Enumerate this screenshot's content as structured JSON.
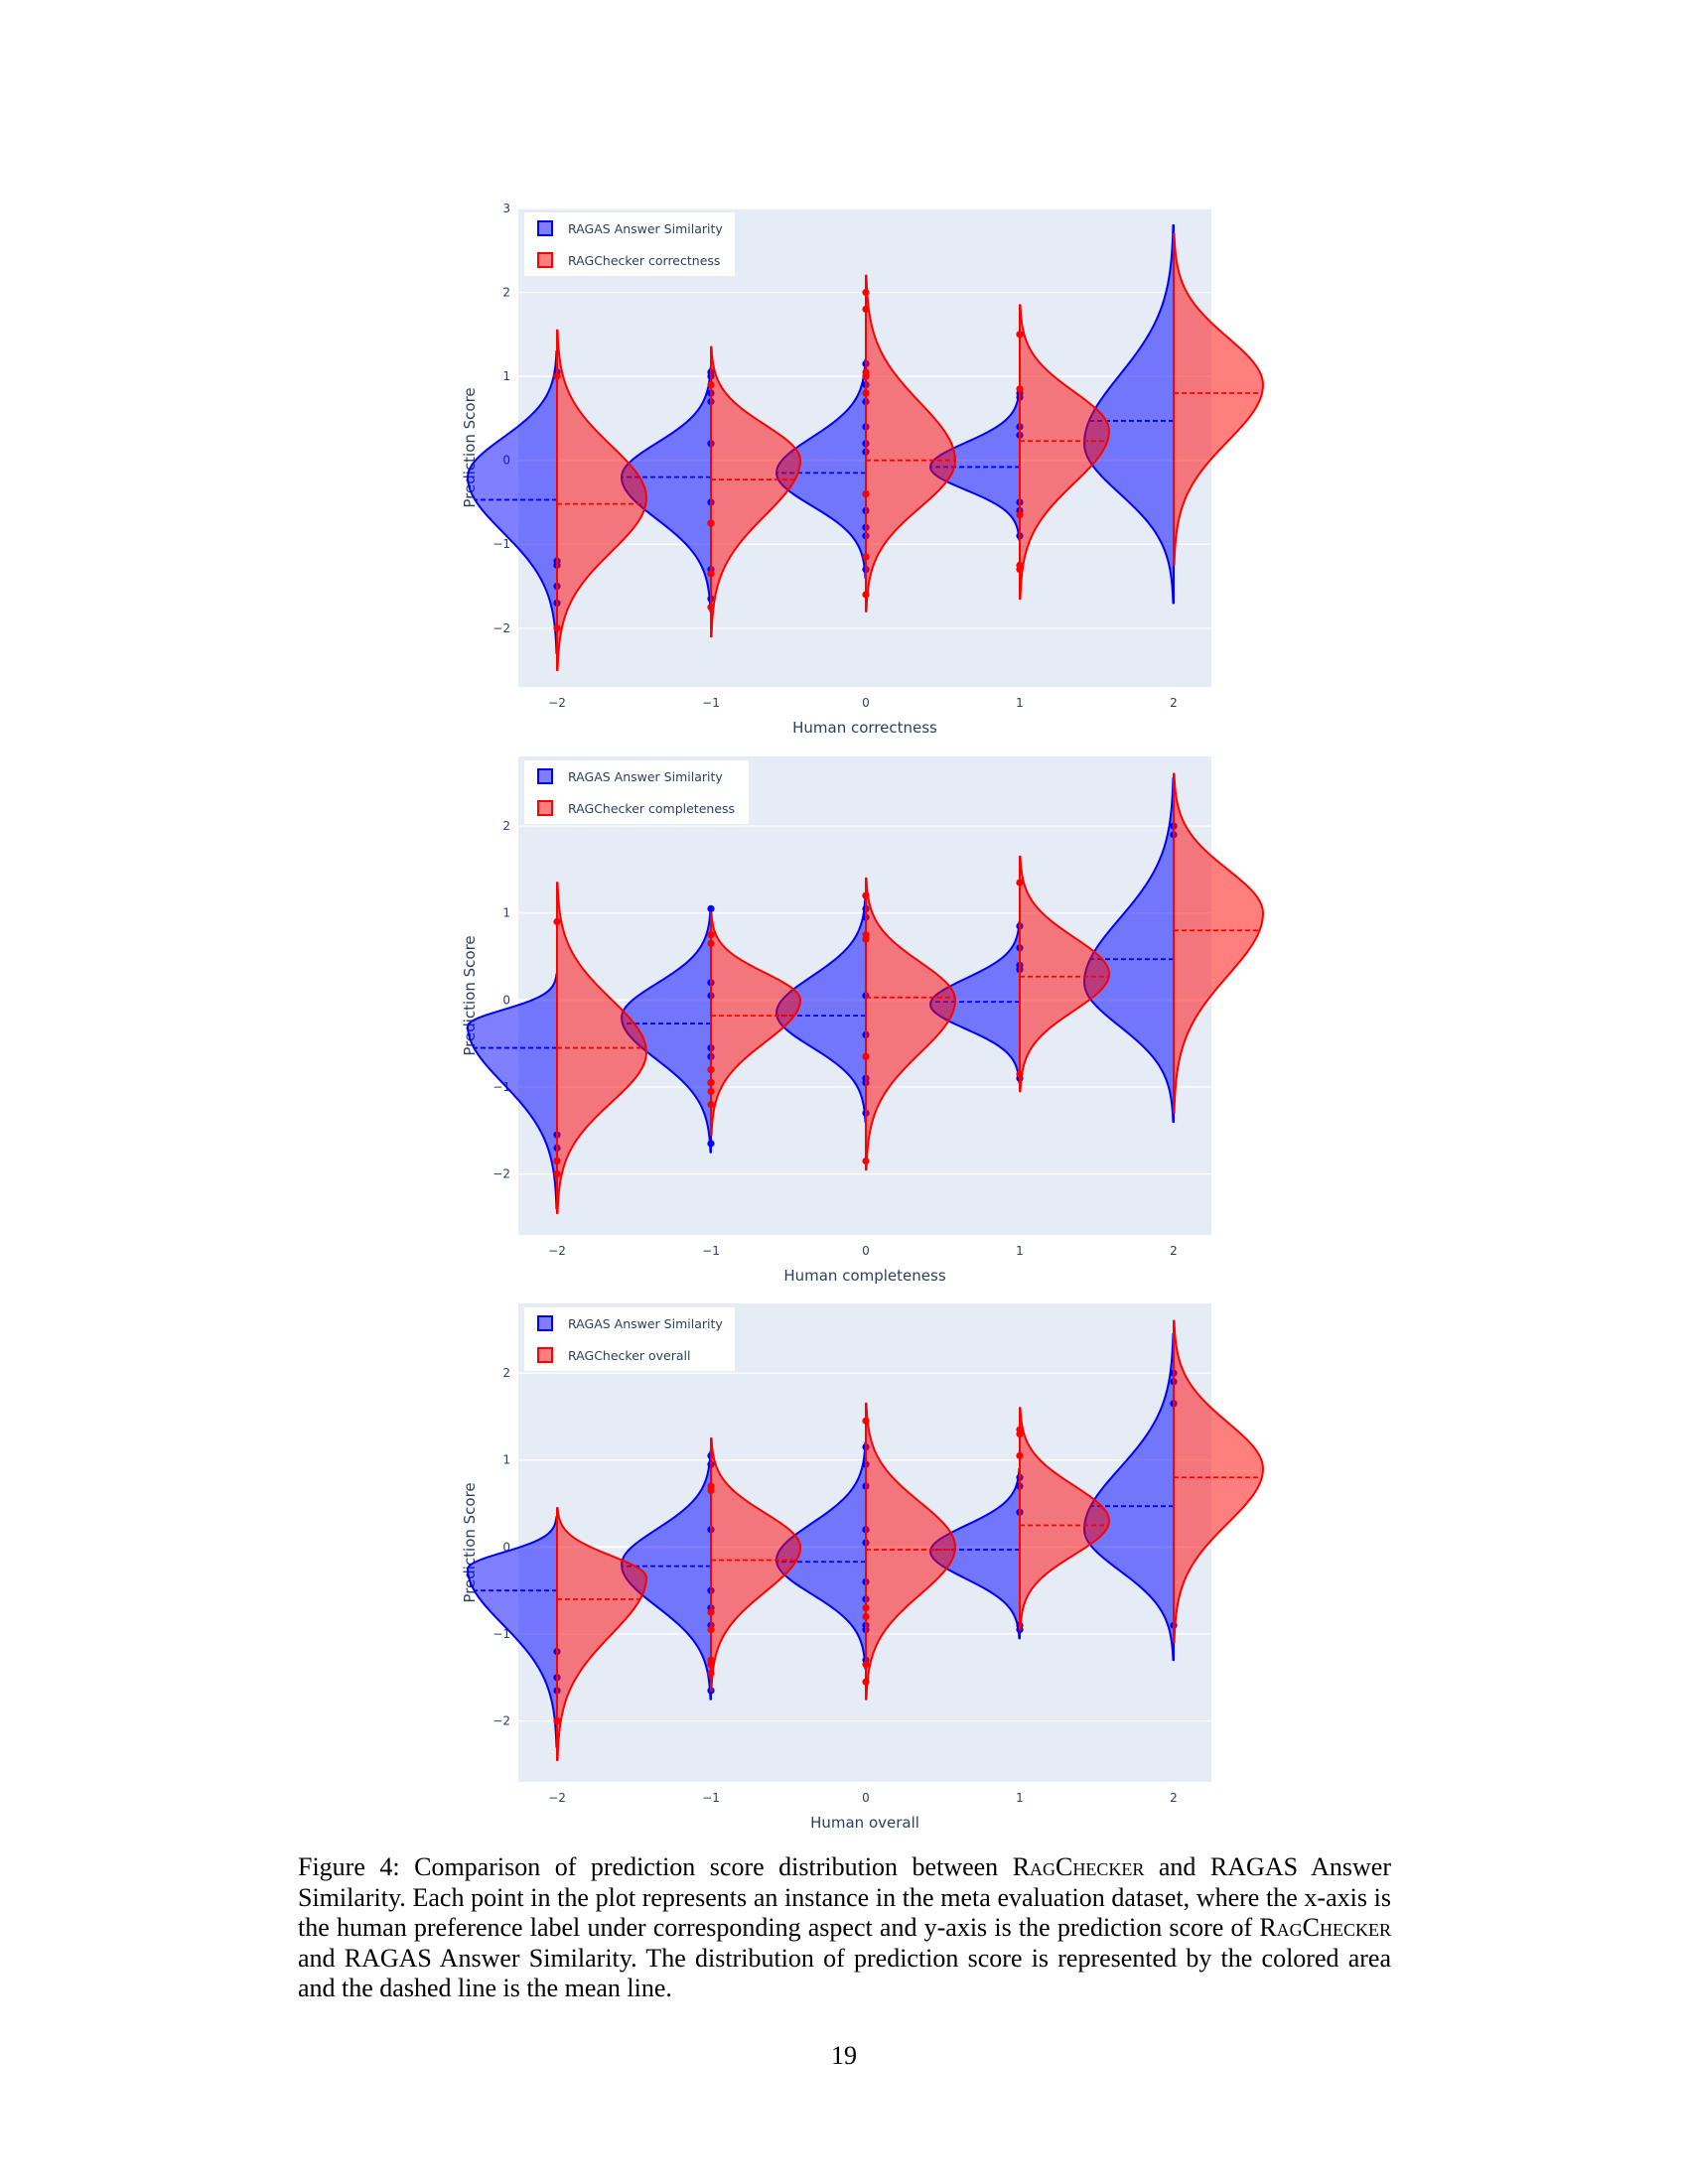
{
  "colors": {
    "blue": "#0000ff",
    "red": "#ff0000",
    "plot_bg": "#e5ecf6"
  },
  "chart_data": [
    {
      "type": "violin",
      "xlabel": "Human correctness",
      "ylabel": "Prediction Score",
      "x": [
        -2,
        -1,
        0,
        1,
        2
      ],
      "x_tick_labels": [
        "−2",
        "−1",
        "0",
        "1",
        "2"
      ],
      "ylim": [
        -2.7,
        3.0
      ],
      "y_ticks": [
        -2,
        -1,
        0,
        1,
        2,
        3
      ],
      "y_tick_labels": [
        "−2",
        "−1",
        "0",
        "1",
        "2",
        "3"
      ],
      "legend_position": "top-left",
      "series": [
        {
          "name": "RAGAS Answer Similarity",
          "side": "negative",
          "color": "#0000ff",
          "groups": [
            {
              "x": -2,
              "range": [
                -2.3,
                1.3
              ],
              "mode": -0.2,
              "mean": -0.47,
              "points": [
                1.05,
                -1.2,
                -1.25,
                -1.5,
                -1.7
              ]
            },
            {
              "x": -1,
              "range": [
                -1.8,
                1.1
              ],
              "mode": -0.2,
              "mean": -0.2,
              "points": [
                1.05,
                1.0,
                0.8,
                0.7,
                0.2,
                -0.5,
                -0.75,
                -1.3,
                -1.65
              ]
            },
            {
              "x": 0,
              "range": [
                -1.4,
                1.2
              ],
              "mode": -0.15,
              "mean": -0.15,
              "points": [
                1.15,
                1.0,
                0.9,
                0.7,
                0.4,
                0.2,
                0.1,
                -0.4,
                -0.6,
                -0.8,
                -0.9,
                -1.3
              ]
            },
            {
              "x": 1,
              "range": [
                -0.95,
                0.85
              ],
              "mode": -0.08,
              "mean": -0.08,
              "points": [
                0.8,
                0.75,
                0.4,
                0.3,
                -0.5,
                -0.6,
                -0.9
              ]
            },
            {
              "x": 2,
              "range": [
                -1.7,
                2.8
              ],
              "mode": 0.2,
              "mean": 0.47,
              "points": []
            }
          ]
        },
        {
          "name": "RAGChecker correctness",
          "side": "positive",
          "color": "#ff0000",
          "groups": [
            {
              "x": -2,
              "range": [
                -2.5,
                1.55
              ],
              "mode": -0.45,
              "mean": -0.52,
              "points": [
                1.0,
                -2.0
              ]
            },
            {
              "x": -1,
              "range": [
                -2.1,
                1.35
              ],
              "mode": 0.0,
              "mean": -0.23,
              "points": [
                0.9,
                -0.75,
                -1.35,
                -1.75
              ]
            },
            {
              "x": 0,
              "range": [
                -1.8,
                2.2
              ],
              "mode": 0.0,
              "mean": 0.0,
              "points": [
                2.0,
                1.8,
                1.05,
                1.0,
                0.8,
                -0.4,
                -1.15,
                -1.6
              ]
            },
            {
              "x": 1,
              "range": [
                -1.65,
                1.85
              ],
              "mode": 0.35,
              "mean": 0.23,
              "points": [
                1.5,
                0.85,
                -0.65,
                -1.25,
                -1.3
              ]
            },
            {
              "x": 2,
              "range": [
                -1.25,
                2.7
              ],
              "mode": 0.9,
              "mean": 0.8,
              "points": []
            }
          ]
        }
      ]
    },
    {
      "type": "violin",
      "xlabel": "Human completeness",
      "ylabel": "Prediction Score",
      "x": [
        -2,
        -1,
        0,
        1,
        2
      ],
      "x_tick_labels": [
        "−2",
        "−1",
        "0",
        "1",
        "2"
      ],
      "ylim": [
        -2.7,
        2.8
      ],
      "y_ticks": [
        -2,
        -1,
        0,
        1,
        2
      ],
      "y_tick_labels": [
        "−2",
        "−1",
        "0",
        "1",
        "2"
      ],
      "legend_position": "top-left",
      "series": [
        {
          "name": "RAGAS Answer Similarity",
          "side": "negative",
          "color": "#0000ff",
          "groups": [
            {
              "x": -2,
              "range": [
                -2.4,
                0.3
              ],
              "mode": -0.3,
              "mean": -0.55,
              "points": [
                -1.55,
                -1.7,
                -1.85,
                -2.0
              ]
            },
            {
              "x": -1,
              "range": [
                -1.75,
                1.05
              ],
              "mode": -0.2,
              "mean": -0.27,
              "points": [
                1.05,
                0.2,
                0.05,
                -0.55,
                -0.65,
                -0.8,
                -0.95,
                -1.65
              ]
            },
            {
              "x": 0,
              "range": [
                -1.4,
                1.2
              ],
              "mode": -0.15,
              "mean": -0.18,
              "points": [
                1.2,
                1.05,
                0.95,
                0.05,
                -0.4,
                -0.9,
                -0.95,
                -1.3
              ]
            },
            {
              "x": 1,
              "range": [
                -0.95,
                0.9
              ],
              "mode": -0.05,
              "mean": -0.02,
              "points": [
                0.85,
                0.6,
                0.4,
                0.35,
                -0.9
              ]
            },
            {
              "x": 2,
              "range": [
                -1.4,
                2.55
              ],
              "mode": 0.2,
              "mean": 0.47,
              "points": [
                2.0,
                1.9
              ]
            }
          ]
        },
        {
          "name": "RAGChecker completeness",
          "side": "positive",
          "color": "#ff0000",
          "groups": [
            {
              "x": -2,
              "range": [
                -2.45,
                1.35
              ],
              "mode": -0.6,
              "mean": -0.55,
              "points": [
                0.9,
                -1.85,
                -2.0
              ]
            },
            {
              "x": -1,
              "range": [
                -1.55,
                1.0
              ],
              "mode": 0.0,
              "mean": -0.18,
              "points": [
                0.75,
                0.65,
                -0.8,
                -0.95,
                -1.05,
                -1.2
              ]
            },
            {
              "x": 0,
              "range": [
                -1.95,
                1.4
              ],
              "mode": 0.0,
              "mean": 0.03,
              "points": [
                1.2,
                0.75,
                0.7,
                -0.65,
                -1.85
              ]
            },
            {
              "x": 1,
              "range": [
                -1.05,
                1.65
              ],
              "mode": 0.3,
              "mean": 0.27,
              "points": [
                1.35,
                -0.85
              ]
            },
            {
              "x": 2,
              "range": [
                -1.3,
                2.6
              ],
              "mode": 1.0,
              "mean": 0.8,
              "points": []
            }
          ]
        }
      ]
    },
    {
      "type": "violin",
      "xlabel": "Human overall",
      "ylabel": "Prediction Score",
      "x": [
        -2,
        -1,
        0,
        1,
        2
      ],
      "x_tick_labels": [
        "−2",
        "−1",
        "0",
        "1",
        "2"
      ],
      "ylim": [
        -2.7,
        2.8
      ],
      "y_ticks": [
        -2,
        -1,
        0,
        1,
        2
      ],
      "y_tick_labels": [
        "−2",
        "−1",
        "0",
        "1",
        "2"
      ],
      "legend_position": "top-left",
      "series": [
        {
          "name": "RAGAS Answer Similarity",
          "side": "negative",
          "color": "#0000ff",
          "groups": [
            {
              "x": -2,
              "range": [
                -2.3,
                0.35
              ],
              "mode": -0.25,
              "mean": -0.5,
              "points": [
                -1.2,
                -1.5,
                -1.65,
                -2.0
              ]
            },
            {
              "x": -1,
              "range": [
                -1.75,
                1.1
              ],
              "mode": -0.2,
              "mean": -0.22,
              "points": [
                1.05,
                0.95,
                0.2,
                -0.5,
                -0.7,
                -0.9,
                -1.65
              ]
            },
            {
              "x": 0,
              "range": [
                -1.4,
                1.2
              ],
              "mode": -0.15,
              "mean": -0.17,
              "points": [
                1.15,
                0.95,
                0.7,
                0.2,
                0.05,
                -0.4,
                -0.6,
                -0.9,
                -0.95,
                -1.3
              ]
            },
            {
              "x": 1,
              "range": [
                -1.05,
                0.9
              ],
              "mode": -0.05,
              "mean": -0.03,
              "points": [
                0.8,
                0.7,
                0.4,
                -0.9,
                -0.95
              ]
            },
            {
              "x": 2,
              "range": [
                -1.3,
                2.45
              ],
              "mode": 0.2,
              "mean": 0.47,
              "points": [
                2.0,
                1.9,
                1.65,
                -0.9
              ]
            }
          ]
        },
        {
          "name": "RAGChecker overall",
          "side": "positive",
          "color": "#ff0000",
          "groups": [
            {
              "x": -2,
              "range": [
                -2.45,
                0.45
              ],
              "mode": -0.35,
              "mean": -0.6,
              "points": [
                -2.0
              ]
            },
            {
              "x": -1,
              "range": [
                -1.65,
                1.25
              ],
              "mode": 0.0,
              "mean": -0.15,
              "points": [
                0.7,
                0.65,
                -0.75,
                -0.95,
                -1.3,
                -1.35,
                -1.45
              ]
            },
            {
              "x": 0,
              "range": [
                -1.75,
                1.65
              ],
              "mode": 0.0,
              "mean": -0.03,
              "points": [
                1.45,
                -0.7,
                -0.8,
                -1.35,
                -1.55
              ]
            },
            {
              "x": 1,
              "range": [
                -0.95,
                1.6
              ],
              "mode": 0.3,
              "mean": 0.25,
              "points": [
                1.35,
                1.3,
                1.05
              ]
            },
            {
              "x": 2,
              "range": [
                -1.1,
                2.6
              ],
              "mode": 0.9,
              "mean": 0.8,
              "points": []
            }
          ]
        }
      ]
    }
  ],
  "caption": {
    "p1": "Figure 4: Comparison of prediction score distribution between ",
    "sc1": "RagChecker",
    "p2": " and RAGAS Answer Similarity. Each point in the plot represents an instance in the meta evaluation dataset, where the x-axis is the human preference label under corresponding aspect and y-axis is the prediction score of ",
    "sc2": "RagChecker",
    "p3": " and RAGAS Answer Similarity. The distribution of prediction score is represented by the colored area and the dashed line is the mean line."
  },
  "page_number": "19"
}
